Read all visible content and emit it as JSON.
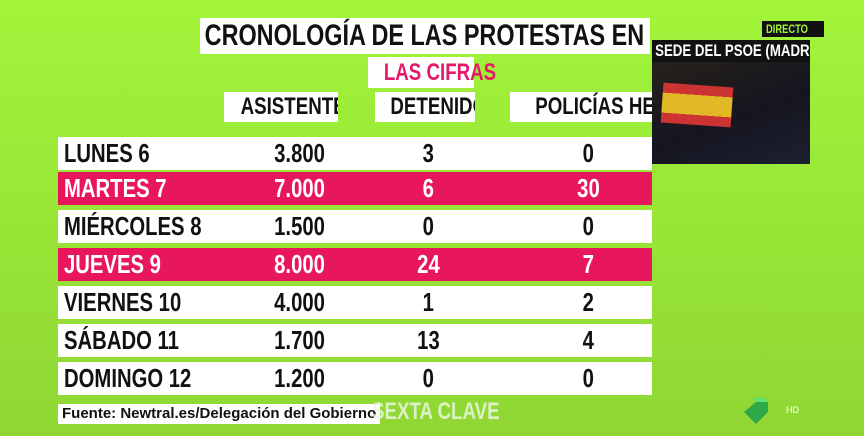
{
  "title": "CRONOLOGÍA DE LAS PROTESTAS EN FERRAZ",
  "subtitle": "LAS CIFRAS",
  "headers": [
    "ASISTENTES",
    "DETENIDOS",
    "POLICÍAS HERIDOS"
  ],
  "rows": [
    {
      "day": "LUNES 6",
      "asistentes": "3.800",
      "detenidos": "3",
      "heridos": "0",
      "highlight": false
    },
    {
      "day": "MARTES 7",
      "asistentes": "7.000",
      "detenidos": "6",
      "heridos": "30",
      "highlight": true
    },
    {
      "day": "MIÉRCOLES 8",
      "asistentes": "1.500",
      "detenidos": "0",
      "heridos": "0",
      "highlight": false
    },
    {
      "day": "JUEVES 9",
      "asistentes": "8.000",
      "detenidos": "24",
      "heridos": "7",
      "highlight": true
    },
    {
      "day": "VIERNES 10",
      "asistentes": "4.000",
      "detenidos": "1",
      "heridos": "2",
      "highlight": false
    },
    {
      "day": "SÁBADO 11",
      "asistentes": "1.700",
      "detenidos": "13",
      "heridos": "4",
      "highlight": false
    },
    {
      "day": "DOMINGO 12",
      "asistentes": "1.200",
      "detenidos": "0",
      "heridos": "0",
      "highlight": false
    }
  ],
  "live": {
    "badge": "DIRECTO",
    "location": "SEDE DEL PSOE (MADRID)"
  },
  "source": "Fuente: Newtral.es/Delegación del Gobierno",
  "program_logo": "SEXTA CLAVE",
  "channel": {
    "quality": "HD"
  },
  "colors": {
    "background": "#a2f53a",
    "highlight": "#e8175d"
  }
}
